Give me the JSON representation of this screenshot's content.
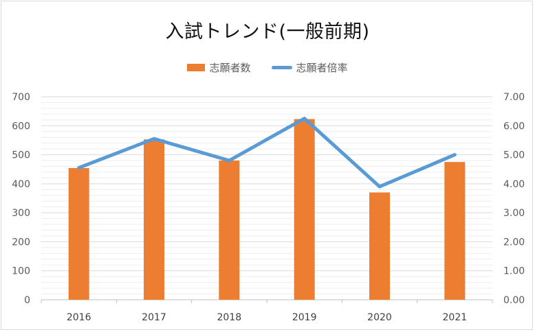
{
  "chart_data": {
    "type": "bar",
    "title": "入試トレンド(一般前期)",
    "categories": [
      "2016",
      "2017",
      "2018",
      "2019",
      "2020",
      "2021"
    ],
    "series": [
      {
        "name": "志願者数",
        "type": "bar",
        "axis": "left",
        "color": "#ED7D31",
        "values": [
          454,
          553,
          480,
          623,
          370,
          475
        ]
      },
      {
        "name": "志願者倍率",
        "type": "line",
        "axis": "right",
        "color": "#5B9BD5",
        "values": [
          4.55,
          5.55,
          4.8,
          6.25,
          3.9,
          5.0
        ]
      }
    ],
    "y_left": {
      "ylim": [
        0,
        700
      ],
      "ticks": [
        "0",
        "100",
        "200",
        "300",
        "400",
        "500",
        "600",
        "700"
      ]
    },
    "y_right": {
      "ylim": [
        0,
        7
      ],
      "ticks": [
        "0.00",
        "1.00",
        "2.00",
        "3.00",
        "4.00",
        "5.00",
        "6.00",
        "7.00"
      ]
    },
    "grid": true,
    "legend_position": "top"
  }
}
